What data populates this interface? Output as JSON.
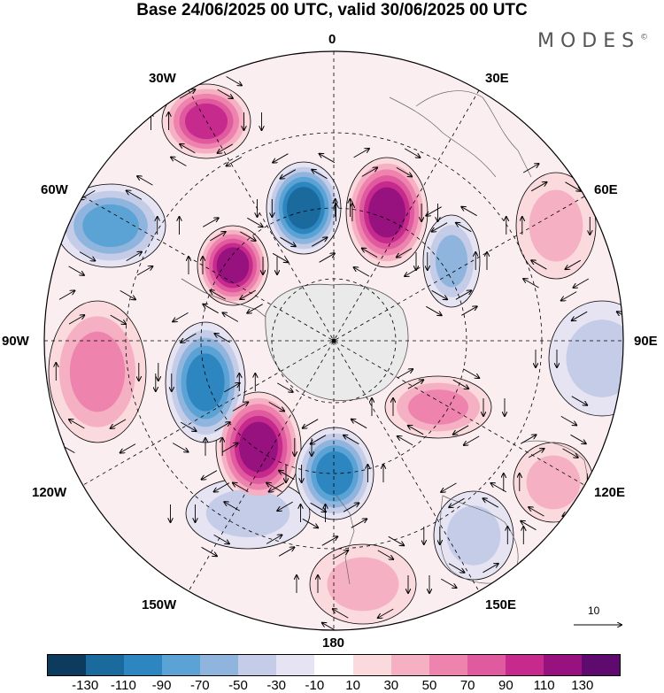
{
  "title": "Base 24/06/2025 00 UTC, valid 30/06/2025 00 UTC",
  "brand": "MODES",
  "brand_mark": "©",
  "longitude_labels": {
    "top": "0",
    "bottom": "180",
    "left": "90W",
    "right": "90E",
    "w30": "30W",
    "e30": "30E",
    "w60": "60W",
    "e60": "60E",
    "w120": "120W",
    "e120": "120E",
    "w150": "150W",
    "e150": "150E"
  },
  "reference_vector_label": "10",
  "colorbar": {
    "colors": [
      "#0d3b5e",
      "#1a6a9e",
      "#2e86c1",
      "#5aa3d4",
      "#8fb4de",
      "#c4cce8",
      "#e6e4f2",
      "#ffffff",
      "#fadadd",
      "#f5b0c3",
      "#ee83ad",
      "#e05aa0",
      "#c72a8d",
      "#98127f",
      "#5e0a6e"
    ],
    "tick_labels": [
      "-130",
      "-110",
      "-90",
      "-70",
      "-50",
      "-30",
      "-10",
      "10",
      "30",
      "50",
      "70",
      "90",
      "110",
      "130"
    ]
  },
  "anomaly_cells": [
    {
      "sign": "neg",
      "level": 6
    },
    {
      "sign": "pos",
      "level": 6
    },
    {
      "sign": "neg",
      "level": 4
    },
    {
      "sign": "pos",
      "level": 5
    },
    {
      "sign": "pos",
      "level": 6
    },
    {
      "sign": "neg",
      "level": 5
    },
    {
      "sign": "pos",
      "level": 6
    },
    {
      "sign": "neg",
      "level": 5
    },
    {
      "sign": "pos",
      "level": 3
    },
    {
      "sign": "neg",
      "level": 3
    },
    {
      "sign": "pos",
      "level": 2
    },
    {
      "sign": "neg",
      "level": 2
    },
    {
      "sign": "pos",
      "level": 3
    },
    {
      "sign": "neg",
      "level": 2
    },
    {
      "sign": "pos",
      "level": 2
    },
    {
      "sign": "pos",
      "level": 2
    },
    {
      "sign": "neg",
      "level": 2
    }
  ]
}
